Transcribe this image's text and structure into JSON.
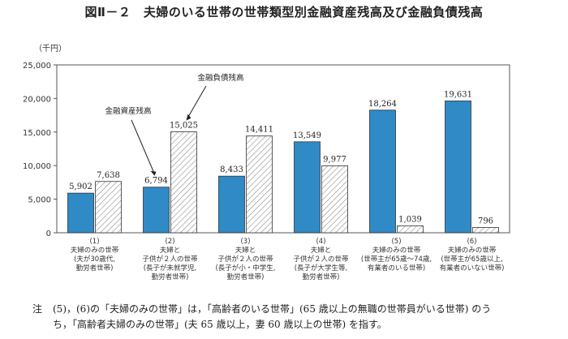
{
  "chart_data": {
    "type": "bar",
    "title": "図Ⅱ－２　夫婦のいる世帯の世帯類型別金融資産残高及び金融負債残高",
    "unit_label": "（千円）",
    "ylim": [
      0,
      25000
    ],
    "yticks": [
      0,
      5000,
      10000,
      15000,
      20000,
      25000
    ],
    "ytick_labels": [
      "0",
      "5,000",
      "10,000",
      "15,000",
      "20,000",
      "25,000"
    ],
    "categories": [
      [
        "(1)",
        "夫婦のみの世帯",
        "(夫が30歳代,",
        "勤労者世帯)"
      ],
      [
        "(2)",
        "夫婦と",
        "子供が２人の世帯",
        "(長子が未就学児,",
        "勤労者世帯)"
      ],
      [
        "(3)",
        "夫婦と",
        "子供が２人の世帯",
        "(長子が小・中学生,",
        "勤労者世帯)"
      ],
      [
        "(4)",
        "夫婦と",
        "子供が２人の世帯",
        "(長子が大学生等,",
        "勤労者世帯)"
      ],
      [
        "(5)",
        "夫婦のみの世帯",
        "(世帯主が65歳～74歳,",
        "有業者のいる世帯)"
      ],
      [
        "(6)",
        "夫婦のみの世帯",
        "(世帯主が65歳以上,",
        "有業者のいない世帯)"
      ]
    ],
    "series": [
      {
        "name": "金融資産残高",
        "values": [
          5902,
          6794,
          8433,
          13549,
          18264,
          19631
        ],
        "color": "#2f8ac6"
      },
      {
        "name": "金融負債残高",
        "values": [
          7638,
          15025,
          14411,
          9977,
          1039,
          796
        ],
        "color": "#ffffff"
      }
    ],
    "value_labels": [
      [
        "5,902",
        "6,794",
        "8,433",
        "13,549",
        "18,264",
        "19,631"
      ],
      [
        "7,638",
        "15,025",
        "14,411",
        "9,977",
        "1,039",
        "796"
      ]
    ],
    "annotations": {
      "assets": "金融資産残高",
      "liabilities": "金融負債残高"
    }
  },
  "note": {
    "lead": "注",
    "line1": "(5)，(6)の「夫婦のみの世帯」は，「高齢者のいる世帯」(65 歳以上の無職の世帯員がいる世帯) のう",
    "line2": "ち，「高齢者夫婦のみの世帯」(夫 65 歳以上，妻 60 歳以上の世帯) を指す。"
  }
}
